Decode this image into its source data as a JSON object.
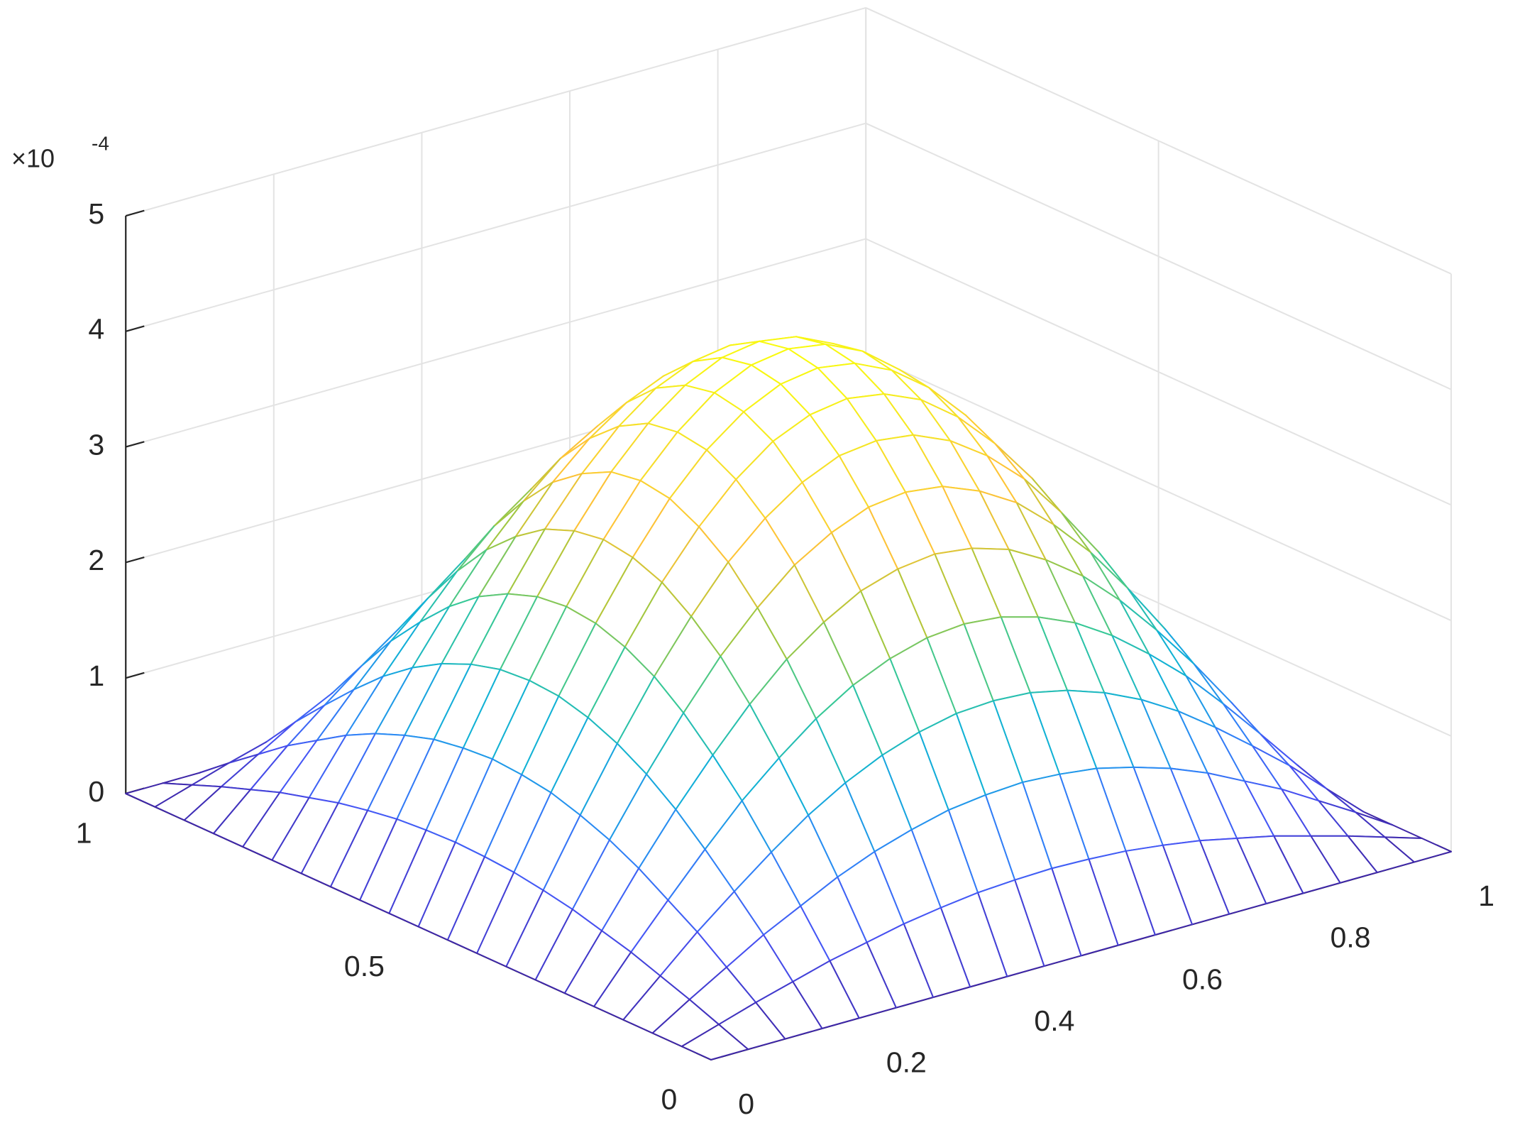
{
  "chart_data": {
    "type": "mesh",
    "x": [
      0,
      0.05,
      0.1,
      0.15,
      0.2,
      0.25,
      0.3,
      0.35,
      0.4,
      0.45,
      0.5,
      0.55,
      0.6,
      0.65,
      0.7,
      0.75,
      0.8,
      0.85,
      0.9,
      0.95,
      1
    ],
    "y": [
      0,
      0.05,
      0.1,
      0.15,
      0.2,
      0.25,
      0.3,
      0.35,
      0.4,
      0.45,
      0.5,
      0.55,
      0.6,
      0.65,
      0.7,
      0.75,
      0.8,
      0.85,
      0.9,
      0.95,
      1
    ],
    "z": [
      [
        0,
        0,
        0,
        0,
        0,
        0,
        0,
        0,
        0,
        0,
        0,
        0,
        0,
        0,
        0,
        0,
        0,
        0,
        0,
        0,
        0
      ],
      [
        0,
        0.1,
        0.2,
        0.29,
        0.38,
        0.45,
        0.52,
        0.57,
        0.61,
        0.63,
        0.64,
        0.63,
        0.61,
        0.57,
        0.52,
        0.45,
        0.38,
        0.29,
        0.2,
        0.1,
        0
      ],
      [
        0,
        0.2,
        0.39,
        0.58,
        0.74,
        0.9,
        1.03,
        1.13,
        1.21,
        1.25,
        1.27,
        1.25,
        1.21,
        1.13,
        1.03,
        0.9,
        0.74,
        0.58,
        0.39,
        0.2,
        0
      ],
      [
        0,
        0.29,
        0.58,
        0.84,
        1.09,
        1.32,
        1.51,
        1.66,
        1.77,
        1.84,
        1.86,
        1.84,
        1.77,
        1.66,
        1.51,
        1.32,
        1.09,
        0.84,
        0.58,
        0.29,
        0
      ],
      [
        0,
        0.38,
        0.74,
        1.09,
        1.42,
        1.7,
        1.95,
        2.15,
        2.29,
        2.38,
        2.41,
        2.38,
        2.29,
        2.15,
        1.95,
        1.7,
        1.42,
        1.09,
        0.74,
        0.38,
        0
      ],
      [
        0,
        0.45,
        0.9,
        1.32,
        1.7,
        2.05,
        2.35,
        2.58,
        2.76,
        2.86,
        2.9,
        2.86,
        2.76,
        2.58,
        2.35,
        2.05,
        1.7,
        1.32,
        0.9,
        0.45,
        0
      ],
      [
        0,
        0.52,
        1.03,
        1.51,
        1.95,
        2.35,
        2.68,
        2.96,
        3.15,
        3.28,
        3.32,
        3.28,
        3.15,
        2.96,
        2.68,
        2.35,
        1.95,
        1.51,
        1.03,
        0.52,
        0
      ],
      [
        0,
        0.57,
        1.13,
        1.66,
        2.15,
        2.58,
        2.96,
        3.25,
        3.47,
        3.61,
        3.65,
        3.61,
        3.47,
        3.25,
        2.96,
        2.58,
        2.15,
        1.66,
        1.13,
        0.57,
        0
      ],
      [
        0,
        0.61,
        1.21,
        1.77,
        2.29,
        2.76,
        3.15,
        3.47,
        3.71,
        3.85,
        3.9,
        3.85,
        3.71,
        3.47,
        3.15,
        2.76,
        2.29,
        1.77,
        1.21,
        0.61,
        0
      ],
      [
        0,
        0.63,
        1.25,
        1.84,
        2.38,
        2.86,
        3.28,
        3.61,
        3.85,
        4,
        4.05,
        4,
        3.85,
        3.61,
        3.28,
        2.86,
        2.38,
        1.84,
        1.25,
        0.63,
        0
      ],
      [
        0,
        0.64,
        1.27,
        1.86,
        2.41,
        2.9,
        3.32,
        3.65,
        3.9,
        4.05,
        4.1,
        4.05,
        3.9,
        3.65,
        3.32,
        2.9,
        2.41,
        1.86,
        1.27,
        0.64,
        0
      ],
      [
        0,
        0.63,
        1.25,
        1.84,
        2.38,
        2.86,
        3.28,
        3.61,
        3.85,
        4,
        4.05,
        4,
        3.85,
        3.61,
        3.28,
        2.86,
        2.38,
        1.84,
        1.25,
        0.63,
        0
      ],
      [
        0,
        0.61,
        1.21,
        1.77,
        2.29,
        2.76,
        3.15,
        3.47,
        3.71,
        3.85,
        3.9,
        3.85,
        3.71,
        3.47,
        3.15,
        2.76,
        2.29,
        1.77,
        1.21,
        0.61,
        0
      ],
      [
        0,
        0.57,
        1.13,
        1.66,
        2.15,
        2.58,
        2.96,
        3.25,
        3.47,
        3.61,
        3.65,
        3.61,
        3.47,
        3.25,
        2.96,
        2.58,
        2.15,
        1.66,
        1.13,
        0.57,
        0
      ],
      [
        0,
        0.52,
        1.03,
        1.51,
        1.95,
        2.35,
        2.68,
        2.96,
        3.15,
        3.28,
        3.32,
        3.28,
        3.15,
        2.96,
        2.68,
        2.35,
        1.95,
        1.51,
        1.03,
        0.52,
        0
      ],
      [
        0,
        0.45,
        0.9,
        1.32,
        1.7,
        2.05,
        2.35,
        2.58,
        2.76,
        2.86,
        2.9,
        2.86,
        2.76,
        2.58,
        2.35,
        2.05,
        1.7,
        1.32,
        0.9,
        0.45,
        0
      ],
      [
        0,
        0.38,
        0.74,
        1.09,
        1.42,
        1.7,
        1.95,
        2.15,
        2.29,
        2.38,
        2.41,
        2.38,
        2.29,
        2.15,
        1.95,
        1.7,
        1.42,
        1.09,
        0.74,
        0.38,
        0
      ],
      [
        0,
        0.29,
        0.58,
        0.84,
        1.09,
        1.32,
        1.51,
        1.66,
        1.77,
        1.84,
        1.86,
        1.84,
        1.77,
        1.66,
        1.51,
        1.32,
        1.09,
        0.84,
        0.58,
        0.29,
        0
      ],
      [
        0,
        0.2,
        0.39,
        0.58,
        0.74,
        0.9,
        1.03,
        1.13,
        1.21,
        1.25,
        1.27,
        1.25,
        1.21,
        1.13,
        1.03,
        0.9,
        0.74,
        0.58,
        0.39,
        0.2,
        0
      ],
      [
        0,
        0.1,
        0.2,
        0.29,
        0.38,
        0.45,
        0.52,
        0.57,
        0.61,
        0.63,
        0.64,
        0.63,
        0.61,
        0.57,
        0.52,
        0.45,
        0.38,
        0.29,
        0.2,
        0.1,
        0
      ],
      [
        0,
        0,
        0,
        0,
        0,
        0,
        0,
        0,
        0,
        0,
        0,
        0,
        0,
        0,
        0,
        0,
        0,
        0,
        0,
        0,
        0
      ]
    ],
    "xlim": [
      0,
      1
    ],
    "ylim": [
      0,
      1
    ],
    "zlim": [
      0,
      5
    ],
    "xticks": [
      0,
      0.2,
      0.4,
      0.6,
      0.8,
      1
    ],
    "yticks": [
      0,
      0.5,
      1
    ],
    "zticks": [
      0,
      1,
      2,
      3,
      4,
      5
    ],
    "z_exponent": {
      "base": "×10",
      "power": "-4"
    },
    "grid": true,
    "colormap": "parula"
  }
}
